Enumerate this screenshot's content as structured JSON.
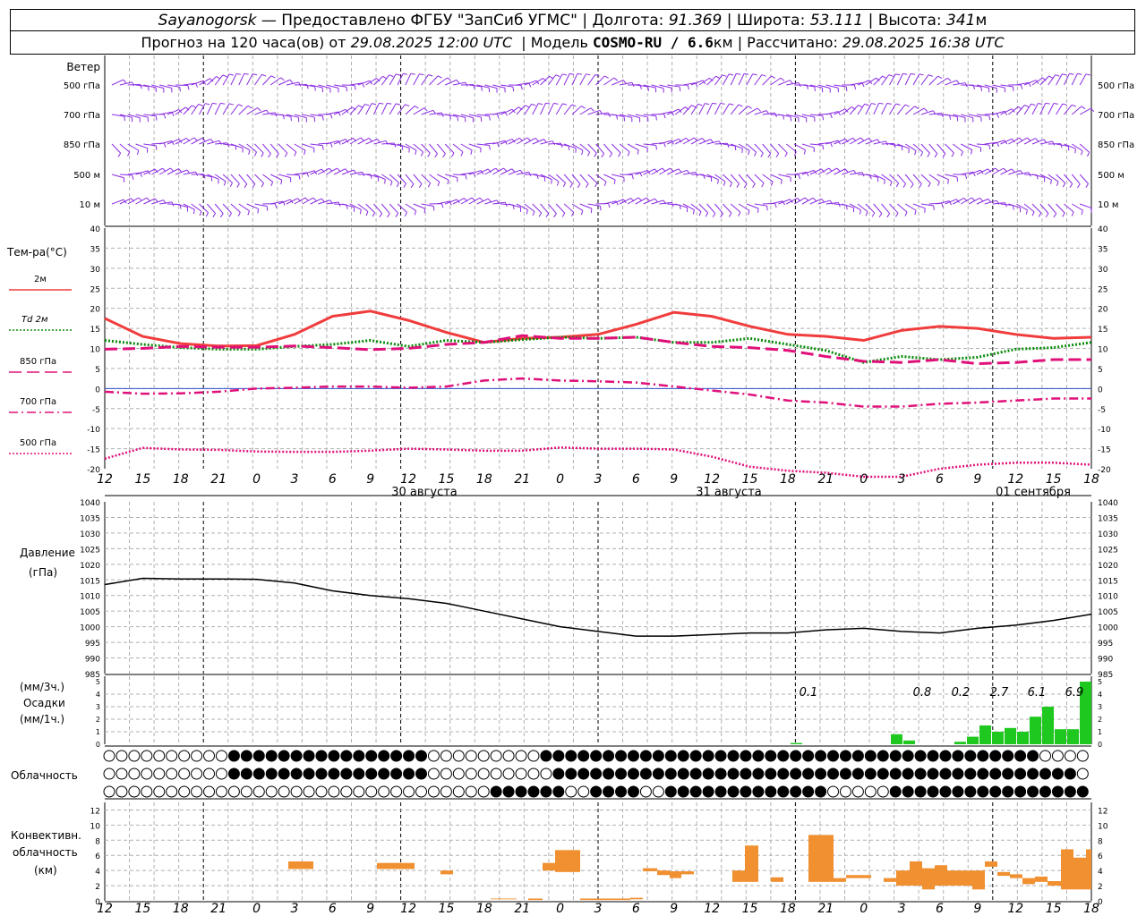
{
  "header": {
    "station": "Sayanogorsk",
    "provider": "— Предоставлено ФГБУ \"ЗапСиб УГМС\" |",
    "lon_label": "Долгота:",
    "lon": "91.369",
    "lat_label": "| Широта:",
    "lat": "53.111",
    "alt_label": "| Высота:",
    "alt": "341",
    "alt_unit": "м",
    "forecast_label": "Прогноз на 120 часа(ов) от",
    "start": "29.08.2025 12:00 UTC",
    "model_label": "| Модель",
    "model": "COSMO-RU / 6.6",
    "model_unit": "км",
    "calc_label": "| Рассчитано:",
    "calc": "29.08.2025 16:38 UTC"
  },
  "chart_data": [
    {
      "type": "wind_barbs",
      "label": "Ветер",
      "levels": [
        "500 гПа",
        "700 гПа",
        "850 гПа",
        "500 м",
        "10 м"
      ],
      "color": "#8a2be2"
    },
    {
      "type": "line",
      "ylabel": "Тем-ра(°C)",
      "ylim": [
        -20,
        40
      ],
      "yticks": [
        -20,
        -15,
        -10,
        -5,
        0,
        5,
        10,
        15,
        20,
        25,
        30,
        35,
        40
      ],
      "x_hours": [
        12,
        15,
        18,
        21,
        0,
        3,
        6,
        9,
        12,
        15,
        18,
        21,
        0,
        3,
        6,
        9,
        12,
        15,
        18,
        21,
        0,
        3,
        6,
        9,
        12,
        15,
        18
      ],
      "day_labels": [
        "30 августа",
        "31 августа",
        "01 сентября"
      ],
      "series": [
        {
          "name": "2м",
          "color": "#f03c3c",
          "style": "solid",
          "values": [
            17.5,
            13,
            11.2,
            10.6,
            10.7,
            13.5,
            18,
            19.3,
            17,
            14,
            11.5,
            12.5,
            12.8,
            13.5,
            16,
            19,
            18,
            15.5,
            13.5,
            13,
            12,
            14.5,
            15.5,
            15,
            13.5,
            12.5,
            12.8
          ]
        },
        {
          "name": "Td 2м",
          "color": "#0a8a0a",
          "style": "dotted",
          "values": [
            12,
            11,
            10.2,
            9.8,
            9.8,
            10.5,
            11,
            12,
            10.5,
            12,
            11.5,
            12.2,
            12.8,
            12.5,
            12.8,
            11.5,
            11.5,
            12.5,
            11,
            9.5,
            6.5,
            8,
            7.2,
            7.8,
            9.8,
            10.2,
            11.5
          ]
        },
        {
          "name": "850 гПа",
          "color": "#e0107a",
          "style": "long-dash",
          "values": [
            9.8,
            10,
            10.5,
            10.3,
            10.3,
            10.6,
            10.2,
            9.7,
            10,
            11,
            11.5,
            13.2,
            12.5,
            12.5,
            12.8,
            11.5,
            10.5,
            10.2,
            9.5,
            8,
            6.8,
            6.5,
            7.2,
            6.2,
            6.5,
            7.2,
            7.2
          ]
        },
        {
          "name": "700 гПа",
          "color": "#e0107a",
          "style": "dash-dot",
          "values": [
            -0.8,
            -1.3,
            -1.2,
            -0.8,
            0,
            0.2,
            0.5,
            0.5,
            0.2,
            0.5,
            2,
            2.5,
            2,
            1.8,
            1.5,
            0.5,
            -0.5,
            -1.5,
            -3,
            -3.5,
            -4.5,
            -4.5,
            -3.8,
            -3.5,
            -3,
            -2.5,
            -2.5
          ]
        },
        {
          "name": "500 гПа",
          "color": "#e0107a",
          "style": "dotted",
          "values": [
            -17.5,
            -14.8,
            -15.2,
            -15.3,
            -15.7,
            -15.8,
            -15.8,
            -15.5,
            -15,
            -15.2,
            -15.5,
            -15.5,
            -14.7,
            -15,
            -15,
            -15.2,
            -17,
            -19.5,
            -20.5,
            -21,
            -22,
            -22,
            -20,
            -19,
            -18.5,
            -18.5,
            -19
          ]
        }
      ]
    },
    {
      "type": "line",
      "ylabel": "Давление",
      "yunit": "(гПа)",
      "ylim": [
        985,
        1040
      ],
      "yticks": [
        985,
        990,
        995,
        1000,
        1005,
        1010,
        1015,
        1020,
        1025,
        1030,
        1035,
        1040
      ],
      "series": [
        {
          "name": "",
          "color": "#000000",
          "values": [
            1013.5,
            1015.5,
            1015.3,
            1015.3,
            1015.2,
            1014,
            1011.5,
            1010,
            1009,
            1007.5,
            1005,
            1002.5,
            1000,
            998.5,
            997,
            997,
            997.5,
            998,
            998,
            999,
            999.5,
            998.5,
            998,
            999.5,
            1000.5,
            1002,
            1004
          ]
        }
      ]
    },
    {
      "type": "bar",
      "ylabel_top": "(мм/3ч.)",
      "ylabel": "Осадки",
      "ylabel_bottom": "(мм/1ч.)",
      "ylim": [
        0,
        5
      ],
      "yticks": [
        0,
        1,
        2,
        3,
        4,
        5
      ],
      "color": "#1ec81e",
      "bars": [
        {
          "hour": "20",
          "value": 0.1
        },
        {
          "hour": "3",
          "value": 0.8
        },
        {
          "hour": "4",
          "value": 0.3
        },
        {
          "hour": "8",
          "value": 0.2
        },
        {
          "hour": "9",
          "value": 0.6
        },
        {
          "hour": "10",
          "value": 1.5
        },
        {
          "hour": "11",
          "value": 1.0
        },
        {
          "hour": "12",
          "value": 1.3
        },
        {
          "hour": "13",
          "value": 1.0
        },
        {
          "hour": "14",
          "value": 2.2
        },
        {
          "hour": "15",
          "value": 3.0
        },
        {
          "hour": "16",
          "value": 1.2
        },
        {
          "hour": "17",
          "value": 1.2
        },
        {
          "hour": "18",
          "value": 5.0
        }
      ],
      "totals": [
        "0.1",
        "0.8",
        "0.2",
        "2.7",
        "6.1",
        "6.9"
      ]
    },
    {
      "type": "cloud_symbols",
      "label": "Облачность",
      "rows": 3
    },
    {
      "type": "bar",
      "ylabel": "Конвективн. облачность (км)",
      "ylim": [
        0,
        13
      ],
      "yticks": [
        0,
        2,
        4,
        6,
        8,
        10,
        12
      ],
      "color": "#f09030",
      "segments": [
        [
          3,
          0,
          4,
          5
        ],
        [
          3,
          1,
          4,
          5
        ],
        [
          9,
          0,
          4,
          5
        ],
        [
          9,
          2,
          4,
          5
        ],
        [
          14,
          4,
          3,
          4
        ],
        [
          18,
          1,
          0,
          0
        ],
        [
          20,
          0,
          0,
          0
        ],
        [
          0,
          0,
          5,
          4
        ],
        [
          0,
          1,
          7,
          3
        ],
        [
          0,
          2,
          7,
          3
        ],
        [
          3,
          0,
          0,
          0
        ],
        [
          6,
          0,
          0,
          0
        ],
        [
          7,
          0,
          3,
          4
        ],
        [
          8,
          0,
          3,
          4
        ],
        [
          9,
          0,
          3,
          4
        ],
        [
          14,
          1,
          3,
          5
        ],
        [
          15,
          0,
          3,
          7
        ],
        [
          16,
          0,
          3,
          3
        ],
        [
          20,
          0,
          2,
          9
        ],
        [
          21,
          0,
          2,
          3
        ],
        [
          0,
          0,
          3,
          3
        ],
        [
          3,
          0,
          2,
          3
        ],
        [
          4,
          0,
          3,
          4
        ],
        [
          5,
          0,
          1,
          5
        ],
        [
          6,
          0,
          1,
          5
        ],
        [
          7,
          0,
          2,
          5
        ],
        [
          8,
          0,
          3,
          4
        ],
        [
          9,
          0,
          2,
          5
        ],
        [
          10,
          0,
          4,
          5
        ],
        [
          11,
          0,
          3,
          4
        ],
        [
          12,
          0,
          3,
          4
        ],
        [
          13,
          0,
          2,
          3
        ],
        [
          14,
          0,
          2,
          3
        ],
        [
          15,
          0,
          1,
          3
        ],
        [
          16,
          0,
          1,
          7
        ],
        [
          17,
          0,
          1,
          6
        ],
        [
          18,
          0,
          1,
          7
        ]
      ]
    }
  ]
}
